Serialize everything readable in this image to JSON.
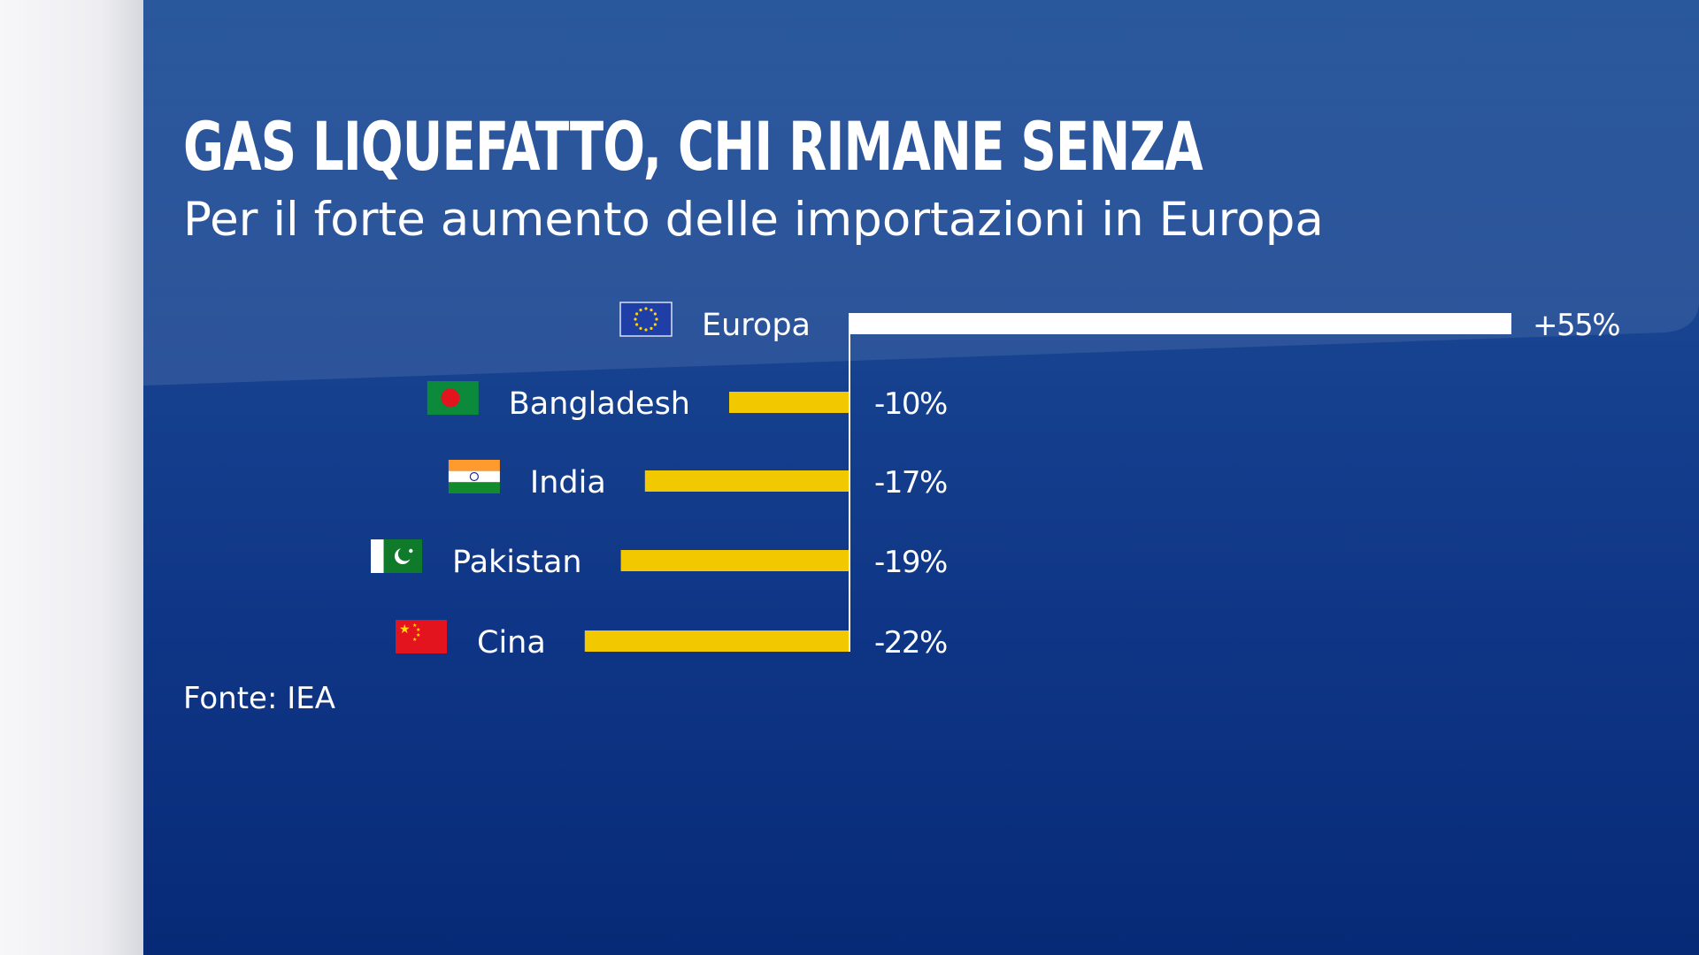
{
  "header": {
    "title": "GAS LIQUEFATTO, CHI RIMANE SENZA",
    "subtitle": "Per il forte aumento delle importazioni in Europa"
  },
  "footer": {
    "source": "Fonte: IEA"
  },
  "colors": {
    "positive_bar": "#ffffff",
    "negative_bar": "#f2c800",
    "text": "#ffffff",
    "background": "#0f3686"
  },
  "chart_data": {
    "type": "bar",
    "orientation": "horizontal",
    "categories": [
      "Europa",
      "Bangladesh",
      "India",
      "Pakistan",
      "Cina"
    ],
    "values": [
      55,
      -10,
      -17,
      -19,
      -22
    ],
    "value_labels": [
      "+55%",
      "-10%",
      "-17%",
      "-19%",
      "-22%"
    ],
    "flag_icons": [
      "eu-flag-icon",
      "bangladesh-flag-icon",
      "india-flag-icon",
      "pakistan-flag-icon",
      "china-flag-icon"
    ],
    "unit": "%",
    "title": "GAS LIQUEFATTO, CHI RIMANE SENZA",
    "subtitle": "Per il forte aumento delle importazioni in Europa",
    "xlim": [
      -22,
      55
    ],
    "grid": false,
    "legend": "none"
  }
}
